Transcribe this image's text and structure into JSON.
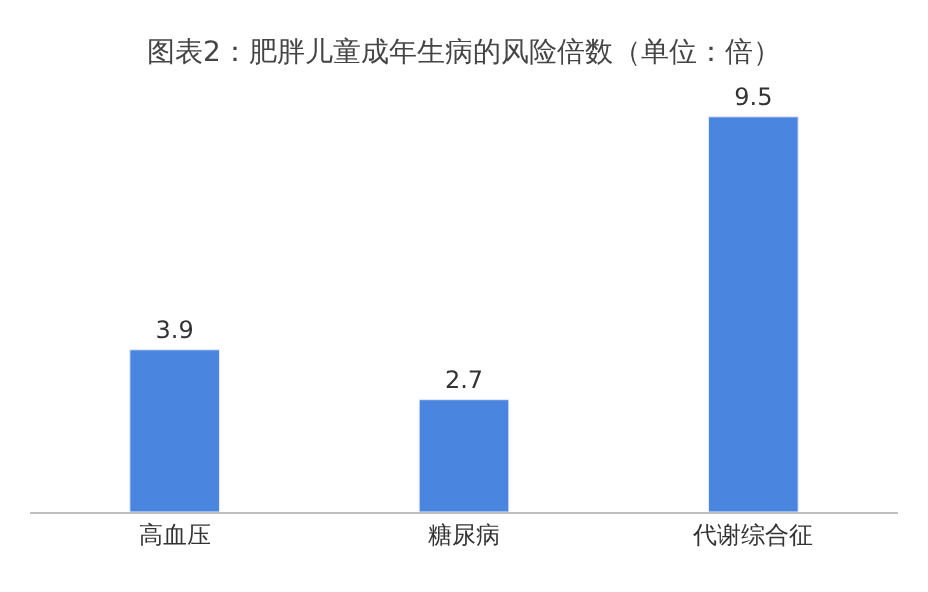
{
  "chart_data": {
    "type": "bar",
    "title": "图表2：肥胖儿童成年生病的风险倍数（单位：倍）",
    "categories": [
      "高血压",
      "糖尿病",
      "代谢综合征"
    ],
    "values": [
      3.9,
      2.7,
      9.5
    ],
    "color": "#4a86e0",
    "data_labels": true
  }
}
